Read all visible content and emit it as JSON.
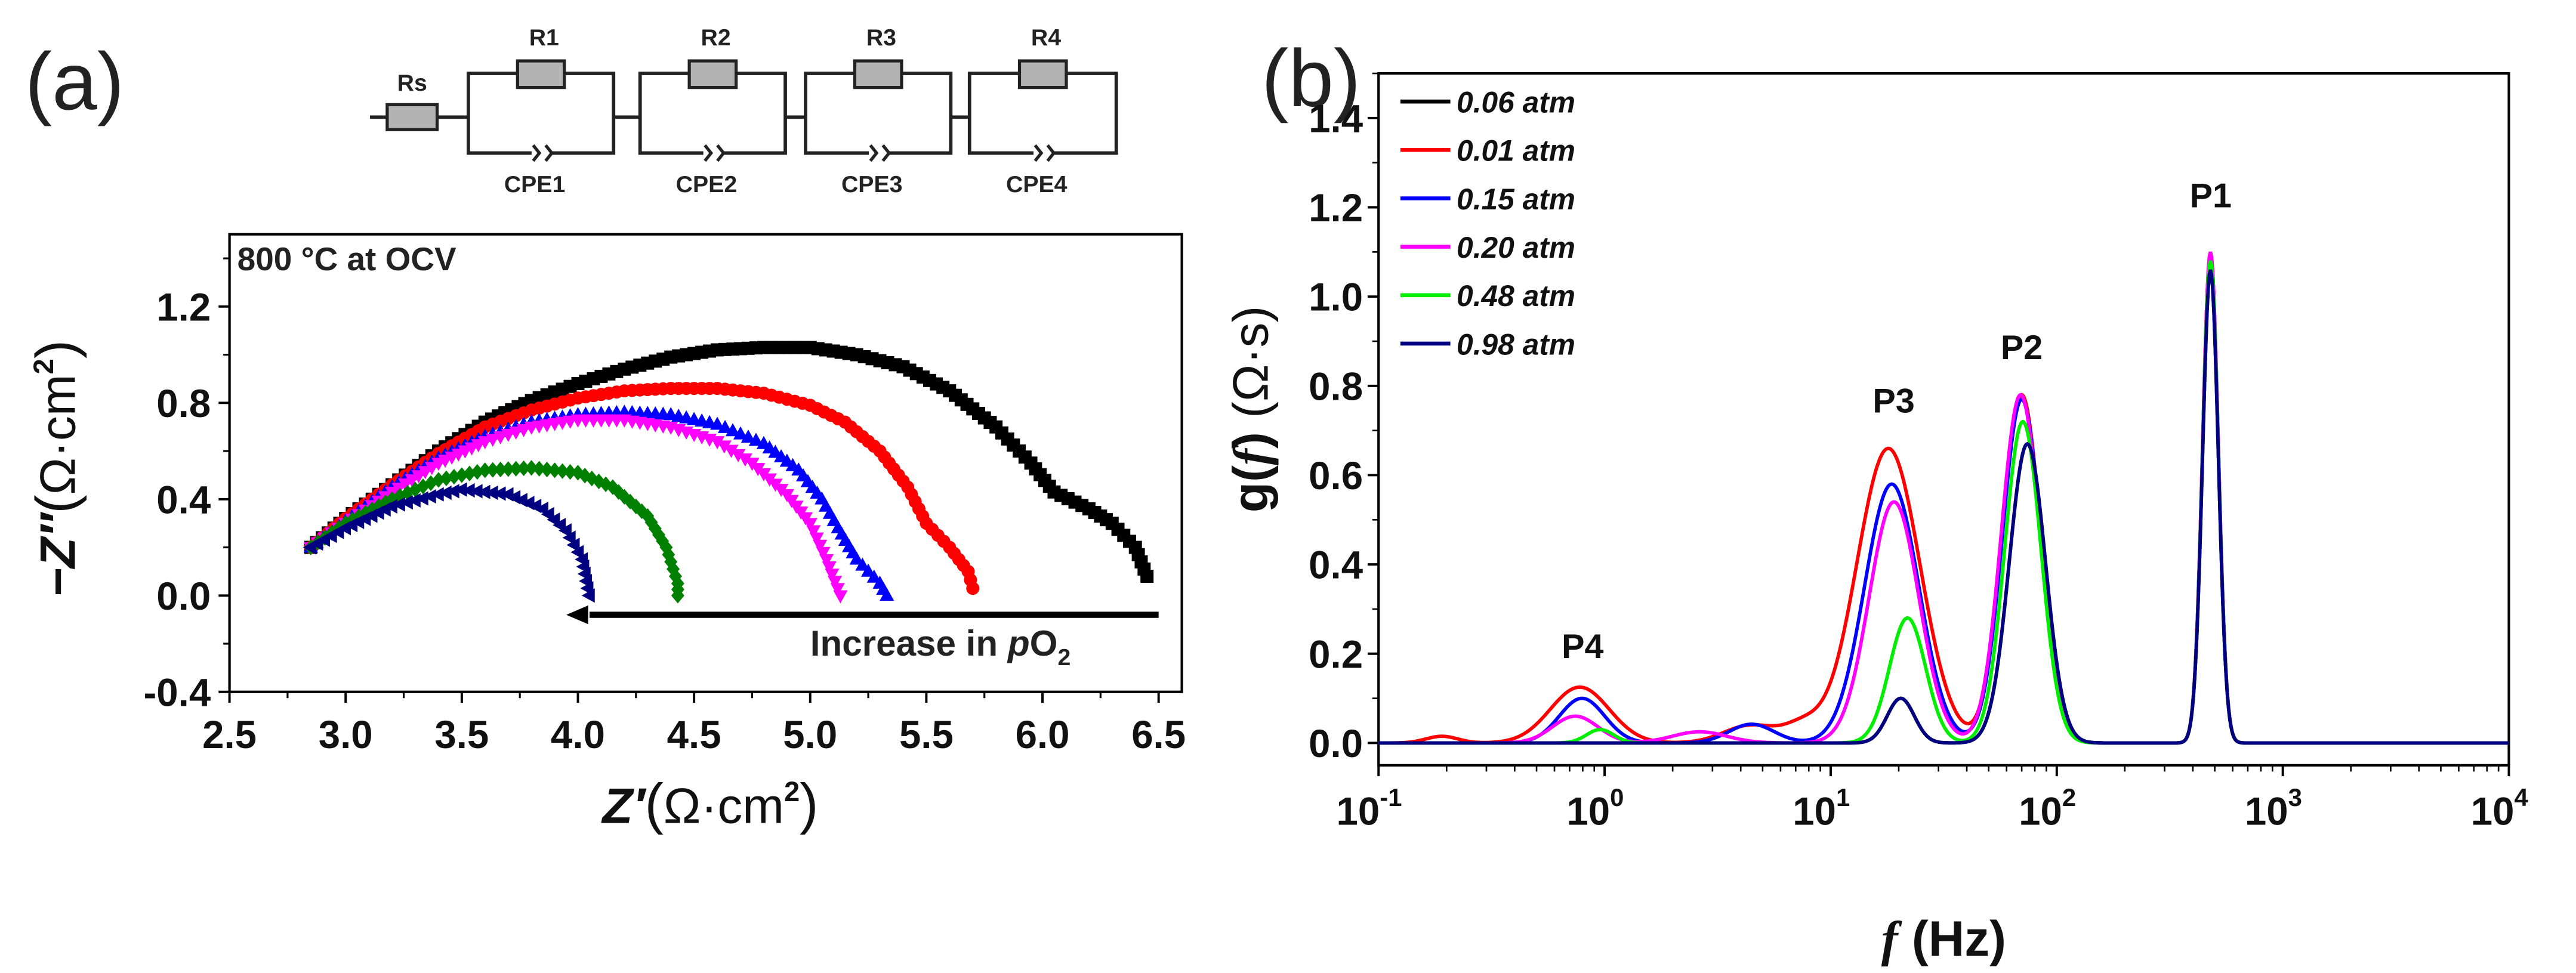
{
  "panel_a": {
    "label": "(a)",
    "circuit": {
      "rs": "Rs",
      "resistors": [
        "R1",
        "R2",
        "R3",
        "R4"
      ],
      "cpes": [
        "CPE1",
        "CPE2",
        "CPE3",
        "CPE4"
      ]
    }
  },
  "panel_b": {
    "label": "(b)"
  },
  "chart_data": [
    {
      "type": "scatter",
      "title": "",
      "annotation": "800 °C at OCV",
      "arrow_label": "Increase in ",
      "arrow_label_italic": "p",
      "arrow_label_rest": "O",
      "arrow_label_sub": "2",
      "xlabel": {
        "main": "Z′",
        "unit": "Ω·cm",
        "sup": "2"
      },
      "ylabel": {
        "main": "−Z″",
        "unit": "Ω·cm",
        "sup": "2"
      },
      "xlim": [
        2.5,
        6.6
      ],
      "ylim": [
        -0.4,
        1.5
      ],
      "xticks": [
        "2.5",
        "3.0",
        "3.5",
        "4.0",
        "4.5",
        "5.0",
        "5.5",
        "6.0",
        "6.5"
      ],
      "yticks": [
        "-0.4",
        "0.0",
        "0.4",
        "0.8",
        "1.2"
      ],
      "series": [
        {
          "name": "0.06 atm",
          "color": "#000000",
          "marker": "square",
          "points": [
            [
              2.85,
              0.2
            ],
            [
              3.0,
              0.32
            ],
            [
              3.2,
              0.46
            ],
            [
              3.4,
              0.6
            ],
            [
              3.6,
              0.72
            ],
            [
              3.8,
              0.81
            ],
            [
              4.0,
              0.88
            ],
            [
              4.2,
              0.94
            ],
            [
              4.4,
              0.99
            ],
            [
              4.6,
              1.02
            ],
            [
              4.8,
              1.03
            ],
            [
              5.0,
              1.03
            ],
            [
              5.2,
              1.0
            ],
            [
              5.4,
              0.95
            ],
            [
              5.6,
              0.85
            ],
            [
              5.8,
              0.7
            ],
            [
              5.95,
              0.55
            ],
            [
              6.05,
              0.43
            ],
            [
              6.2,
              0.36
            ],
            [
              6.3,
              0.3
            ],
            [
              6.4,
              0.2
            ],
            [
              6.45,
              0.08
            ]
          ]
        },
        {
          "name": "0.01 atm",
          "color": "#ff0000",
          "marker": "circle",
          "points": [
            [
              2.85,
              0.2
            ],
            [
              3.0,
              0.32
            ],
            [
              3.2,
              0.46
            ],
            [
              3.4,
              0.59
            ],
            [
              3.6,
              0.7
            ],
            [
              3.8,
              0.77
            ],
            [
              4.0,
              0.82
            ],
            [
              4.2,
              0.85
            ],
            [
              4.4,
              0.86
            ],
            [
              4.6,
              0.86
            ],
            [
              4.8,
              0.84
            ],
            [
              5.0,
              0.79
            ],
            [
              5.15,
              0.72
            ],
            [
              5.3,
              0.6
            ],
            [
              5.42,
              0.45
            ],
            [
              5.5,
              0.3
            ],
            [
              5.6,
              0.2
            ],
            [
              5.68,
              0.1
            ],
            [
              5.7,
              0.03
            ]
          ]
        },
        {
          "name": "0.15 atm",
          "color": "#0000ff",
          "marker": "triangle-up",
          "points": [
            [
              2.85,
              0.2
            ],
            [
              3.0,
              0.31
            ],
            [
              3.2,
              0.45
            ],
            [
              3.4,
              0.57
            ],
            [
              3.6,
              0.66
            ],
            [
              3.8,
              0.72
            ],
            [
              4.0,
              0.75
            ],
            [
              4.2,
              0.76
            ],
            [
              4.4,
              0.75
            ],
            [
              4.6,
              0.71
            ],
            [
              4.8,
              0.63
            ],
            [
              4.95,
              0.52
            ],
            [
              5.05,
              0.4
            ],
            [
              5.12,
              0.28
            ],
            [
              5.2,
              0.15
            ],
            [
              5.3,
              0.05
            ],
            [
              5.33,
              0.0
            ]
          ]
        },
        {
          "name": "0.20 atm",
          "color": "#ff00ff",
          "marker": "triangle-down",
          "points": [
            [
              2.85,
              0.2
            ],
            [
              3.0,
              0.3
            ],
            [
              3.2,
              0.43
            ],
            [
              3.4,
              0.55
            ],
            [
              3.6,
              0.64
            ],
            [
              3.8,
              0.7
            ],
            [
              4.0,
              0.73
            ],
            [
              4.2,
              0.73
            ],
            [
              4.4,
              0.7
            ],
            [
              4.6,
              0.64
            ],
            [
              4.75,
              0.55
            ],
            [
              4.9,
              0.42
            ],
            [
              5.0,
              0.3
            ],
            [
              5.07,
              0.15
            ],
            [
              5.13,
              0.0
            ]
          ]
        },
        {
          "name": "0.48 atm",
          "color": "#008000",
          "marker": "diamond",
          "points": [
            [
              2.85,
              0.2
            ],
            [
              3.0,
              0.3
            ],
            [
              3.2,
              0.4
            ],
            [
              3.4,
              0.48
            ],
            [
              3.6,
              0.52
            ],
            [
              3.8,
              0.53
            ],
            [
              4.0,
              0.51
            ],
            [
              4.15,
              0.45
            ],
            [
              4.3,
              0.33
            ],
            [
              4.38,
              0.2
            ],
            [
              4.43,
              0.05
            ],
            [
              4.43,
              0.0
            ]
          ]
        },
        {
          "name": "0.98 atm",
          "color": "#000080",
          "marker": "triangle-left",
          "points": [
            [
              2.85,
              0.2
            ],
            [
              3.0,
              0.28
            ],
            [
              3.2,
              0.37
            ],
            [
              3.4,
              0.42
            ],
            [
              3.5,
              0.44
            ],
            [
              3.7,
              0.42
            ],
            [
              3.85,
              0.36
            ],
            [
              3.95,
              0.27
            ],
            [
              4.02,
              0.15
            ],
            [
              4.05,
              0.0
            ]
          ]
        }
      ]
    },
    {
      "type": "line",
      "title": "",
      "xlabel": {
        "italic": "f",
        "rest": " (Hz)"
      },
      "ylabel": {
        "main": "g(",
        "italic": "f",
        "close": ")",
        "unit": " (Ω·s)"
      },
      "xscale": "log",
      "xlim": [
        0.1,
        10000
      ],
      "ylim": [
        -0.05,
        1.5
      ],
      "xtick_base": "10",
      "xtick_exponents": [
        "-1",
        "0",
        "1",
        "2",
        "3",
        "4"
      ],
      "yticks": [
        "0.0",
        "0.2",
        "0.4",
        "0.6",
        "0.8",
        "1.0",
        "1.2",
        "1.4"
      ],
      "legend_position": "top-left",
      "peak_labels": [
        {
          "text": "P1",
          "f": 480,
          "g": 1.2
        },
        {
          "text": "P2",
          "f": 70,
          "g": 0.86
        },
        {
          "text": "P3",
          "f": 19,
          "g": 0.74
        },
        {
          "text": "P4",
          "f": 0.8,
          "g": 0.19
        }
      ],
      "series": [
        {
          "name": "0.06 atm",
          "color": "#000000",
          "peaks": [
            [
              1.31,
              0.1,
              0.06
            ],
            [
              1.87,
              0.67,
              0.08
            ],
            [
              2.68,
              1.06,
              0.035
            ]
          ]
        },
        {
          "name": "0.01 atm",
          "color": "#ff0000",
          "peaks": [
            [
              -0.72,
              0.015,
              0.07
            ],
            [
              -0.11,
              0.125,
              0.13
            ],
            [
              0.65,
              0.04,
              0.12
            ],
            [
              0.88,
              0.035,
              0.08
            ],
            [
              1.255,
              0.66,
              0.14
            ],
            [
              1.845,
              0.78,
              0.085
            ],
            [
              2.68,
              1.1,
              0.035
            ]
          ]
        },
        {
          "name": "0.15 atm",
          "color": "#0000ff",
          "peaks": [
            [
              -0.1,
              0.1,
              0.1
            ],
            [
              0.65,
              0.042,
              0.1
            ],
            [
              1.27,
              0.58,
              0.12
            ],
            [
              1.845,
              0.77,
              0.085
            ],
            [
              2.68,
              1.08,
              0.035
            ]
          ]
        },
        {
          "name": "0.20 atm",
          "color": "#ff00ff",
          "peaks": [
            [
              -0.13,
              0.06,
              0.1
            ],
            [
              0.42,
              0.025,
              0.12
            ],
            [
              1.28,
              0.54,
              0.11
            ],
            [
              1.84,
              0.78,
              0.085
            ],
            [
              2.68,
              1.1,
              0.035
            ]
          ]
        },
        {
          "name": "0.48 atm",
          "color": "#00ee00",
          "peaks": [
            [
              -0.02,
              0.03,
              0.06
            ],
            [
              1.34,
              0.28,
              0.08
            ],
            [
              1.85,
              0.72,
              0.08
            ],
            [
              2.68,
              1.08,
              0.035
            ]
          ]
        },
        {
          "name": "0.98 atm",
          "color": "#000080",
          "peaks": [
            [
              1.31,
              0.1,
              0.06
            ],
            [
              1.87,
              0.67,
              0.08
            ],
            [
              2.68,
              1.06,
              0.035
            ]
          ]
        }
      ]
    }
  ]
}
